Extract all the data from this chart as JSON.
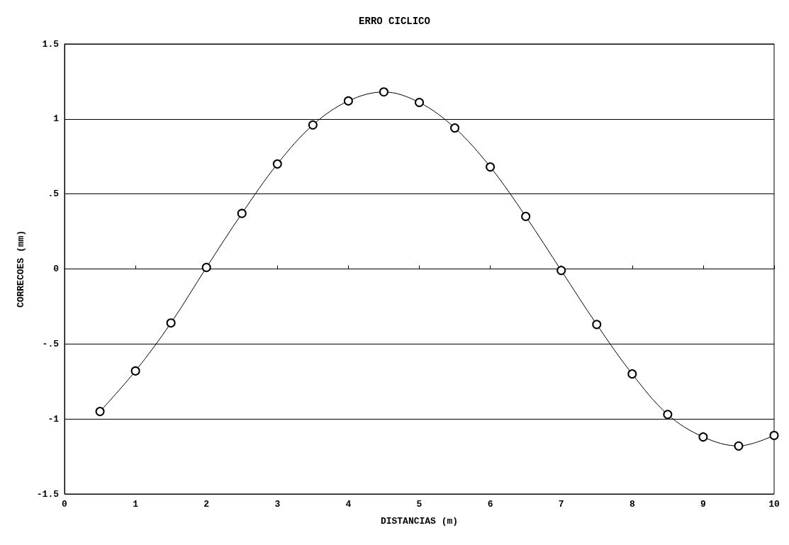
{
  "chart_data": {
    "type": "line",
    "title": "ERRO CICLICO",
    "xlabel": "DISTANCIAS (m)",
    "ylabel": "CORRECOES (mm)",
    "x": [
      0.5,
      1,
      1.5,
      2,
      2.5,
      3,
      3.5,
      4,
      4.5,
      5,
      5.5,
      6,
      6.5,
      7,
      7.5,
      8,
      8.5,
      9,
      9.5,
      10
    ],
    "series": [
      {
        "color": "#000000",
        "values": [
          -0.95,
          -0.68,
          -0.36,
          0.01,
          0.37,
          0.7,
          0.96,
          1.12,
          1.18,
          1.11,
          0.94,
          0.68,
          0.35,
          -0.01,
          -0.37,
          -0.7,
          -0.97,
          -1.12,
          -1.18,
          -1.11
        ]
      }
    ],
    "xlim": [
      0,
      10
    ],
    "xticks": [
      0,
      1,
      2,
      3,
      4,
      5,
      6,
      7,
      8,
      9,
      10
    ],
    "ylim": [
      -1.5,
      1.5
    ],
    "yticks": [
      {
        "value": -1.5,
        "label": "-1.5"
      },
      {
        "value": -1,
        "label": "-1"
      },
      {
        "value": -0.5,
        "label": "-.5"
      },
      {
        "value": 0,
        "label": "0"
      },
      {
        "value": 0.5,
        "label": ".5"
      },
      {
        "value": 1,
        "label": "1"
      },
      {
        "value": 1.5,
        "label": "1.5"
      }
    ],
    "grid": "y",
    "marker": "circle",
    "line_style": "solid"
  }
}
